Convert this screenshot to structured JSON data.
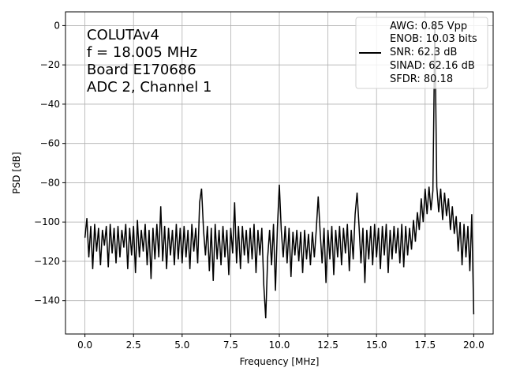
{
  "chart_data": {
    "type": "line",
    "xlabel": "Frequency [MHz]",
    "ylabel": "PSD [dB]",
    "xlim": [
      -1,
      21
    ],
    "ylim": [
      -157,
      7
    ],
    "grid": true,
    "xticks": [
      0,
      2.5,
      5,
      7.5,
      10,
      12.5,
      15,
      17.5,
      20
    ],
    "xtick_labels": [
      "0.0",
      "2.5",
      "5.0",
      "7.5",
      "10.0",
      "12.5",
      "15.0",
      "17.5",
      "20.0"
    ],
    "yticks": [
      0,
      -20,
      -40,
      -60,
      -80,
      -100,
      -120,
      -140
    ],
    "ytick_labels": [
      "0",
      "−20",
      "−40",
      "−60",
      "−80",
      "−100",
      "−120",
      "−140"
    ],
    "annotation": [
      "COLUTAv4",
      "f = 18.005 MHz",
      "Board E170686",
      "ADC 2, Channel 1"
    ],
    "legend": {
      "placement": "upper right",
      "lines": [
        "AWG: 0.85 Vpp",
        "ENOB: 10.03 bits",
        "SNR: 62.3 dB",
        "SINAD: 62.16 dB",
        "SFDR: 80.18"
      ]
    },
    "series": [
      {
        "color": "#000000",
        "x_start": 0,
        "x_step": 0.1,
        "values": [
          -108,
          -98,
          -118,
          -102,
          -124,
          -101,
          -115,
          -103,
          -122,
          -104,
          -112,
          -102,
          -123,
          -101,
          -116,
          -103,
          -121,
          -102,
          -118,
          -104,
          -113,
          -101,
          -124,
          -103,
          -117,
          -102,
          -126,
          -99,
          -118,
          -104,
          -115,
          -101,
          -122,
          -104,
          -129,
          -103,
          -119,
          -101,
          -118,
          -92,
          -120,
          -102,
          -124,
          -103,
          -117,
          -104,
          -122,
          -101,
          -119,
          -103,
          -121,
          -102,
          -118,
          -104,
          -124,
          -101,
          -115,
          -103,
          -121,
          -90,
          -83,
          -104,
          -117,
          -102,
          -125,
          -103,
          -130,
          -101,
          -119,
          -104,
          -122,
          -102,
          -118,
          -104,
          -127,
          -103,
          -116,
          -90,
          -121,
          -102,
          -124,
          -102,
          -117,
          -104,
          -121,
          -103,
          -119,
          -101,
          -126,
          -104,
          -117,
          -103,
          -132,
          -149,
          -118,
          -104,
          -122,
          -101,
          -135,
          -103,
          -81,
          -104,
          -118,
          -102,
          -121,
          -103,
          -128,
          -105,
          -117,
          -104,
          -120,
          -105,
          -126,
          -104,
          -119,
          -106,
          -122,
          -105,
          -118,
          -104,
          -87,
          -105,
          -121,
          -103,
          -131,
          -104,
          -119,
          -102,
          -127,
          -104,
          -118,
          -102,
          -122,
          -103,
          -116,
          -101,
          -125,
          -104,
          -119,
          -96,
          -85,
          -102,
          -121,
          -103,
          -131,
          -104,
          -119,
          -102,
          -122,
          -101,
          -118,
          -103,
          -124,
          -102,
          -117,
          -101,
          -126,
          -104,
          -119,
          -102,
          -116,
          -103,
          -121,
          -101,
          -123,
          -102,
          -117,
          -103,
          -114,
          -99,
          -110,
          -95,
          -104,
          -88,
          -100,
          -83,
          -96,
          -82,
          -94,
          -84,
          0,
          -82,
          -95,
          -83,
          -99,
          -85,
          -97,
          -88,
          -104,
          -92,
          -106,
          -97,
          -115,
          -100,
          -122,
          -101,
          -118,
          -102,
          -125,
          -96,
          -147
        ]
      }
    ]
  }
}
